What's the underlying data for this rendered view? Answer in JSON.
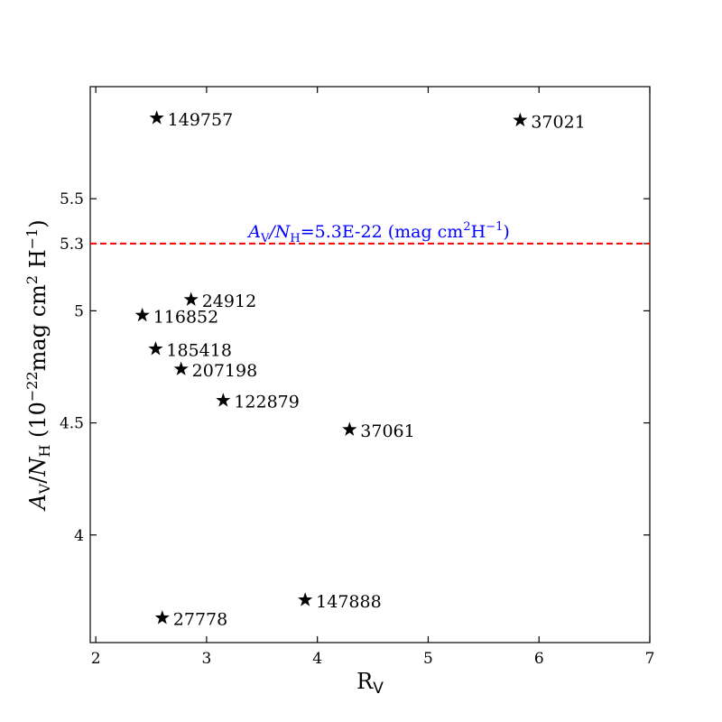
{
  "chart_data": {
    "type": "scatter",
    "marker": "star",
    "xlim": [
      1.95,
      7.0
    ],
    "ylim": [
      3.52,
      6.0
    ],
    "x_ticks": [
      {
        "value": 2,
        "label": "2"
      },
      {
        "value": 3,
        "label": "3"
      },
      {
        "value": 4,
        "label": "4"
      },
      {
        "value": 5,
        "label": "5"
      },
      {
        "value": 6,
        "label": "6"
      },
      {
        "value": 7,
        "label": "7"
      }
    ],
    "y_ticks": [
      {
        "value": 4.0,
        "label": "4"
      },
      {
        "value": 4.5,
        "label": "4.5"
      },
      {
        "value": 5.0,
        "label": "5"
      },
      {
        "value": 5.3,
        "label": "5.3"
      },
      {
        "value": 5.5,
        "label": "5.5"
      }
    ],
    "xlabel": {
      "main": "R",
      "sub": "V"
    },
    "ylabel": {
      "a": "A",
      "a_sub": "V",
      "slash": "/",
      "n": "N",
      "n_sub": "H",
      "open": "  (10",
      "exp1": "−22",
      "mid": "mag cm",
      "exp2": "2",
      "h": " H",
      "exp3": "−1",
      "close": ")"
    },
    "points": [
      {
        "label": "149757",
        "x": 2.55,
        "y": 5.86
      },
      {
        "label": "37021",
        "x": 5.83,
        "y": 5.85
      },
      {
        "label": "24912",
        "x": 2.86,
        "y": 5.05
      },
      {
        "label": "116852",
        "x": 2.42,
        "y": 4.98
      },
      {
        "label": "185418",
        "x": 2.54,
        "y": 4.83
      },
      {
        "label": "207198",
        "x": 2.77,
        "y": 4.74
      },
      {
        "label": "122879",
        "x": 3.15,
        "y": 4.6
      },
      {
        "label": "37061",
        "x": 4.29,
        "y": 4.47
      },
      {
        "label": "147888",
        "x": 3.89,
        "y": 3.71
      },
      {
        "label": "27778",
        "x": 2.6,
        "y": 3.63
      }
    ],
    "reference_line": {
      "y": 5.3,
      "color": "#ff0000",
      "style": "dashed",
      "label": {
        "a": "A",
        "a_sub": "V",
        "slash": "/",
        "n": "N",
        "n_sub": "H",
        "text": "=5.3E-22 (mag cm",
        "exp1": "2",
        "h": "H",
        "exp2": "−1",
        "close": ")"
      },
      "label_color": "#0000ff"
    },
    "marker_color": "#000000",
    "grid": false,
    "legend": "none"
  }
}
